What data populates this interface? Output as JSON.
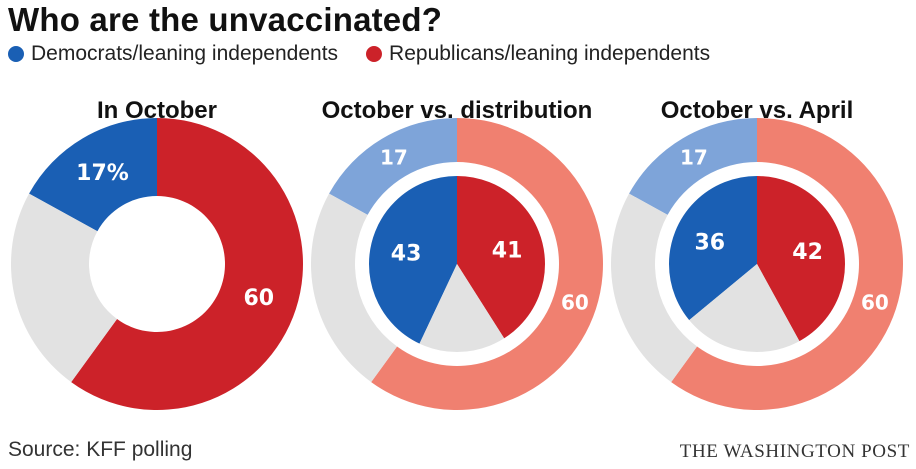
{
  "title": "Who are the unvaccinated?",
  "legend": [
    {
      "label": "Democrats/leaning independents",
      "color": "#1a5fb4"
    },
    {
      "label": "Republicans/leaning independents",
      "color": "#cc2229"
    }
  ],
  "colors": {
    "dem": "#1a5fb4",
    "rep": "#cc2229",
    "other": "#e2e2e2",
    "dem_light": "#7ea4d9",
    "rep_light": "#f08070"
  },
  "chart_data": [
    {
      "type": "pie",
      "title": "In October",
      "rings": [
        {
          "name": "October",
          "slices": [
            {
              "label": "Democrats/leaning independents",
              "value": 17,
              "text": "17%"
            },
            {
              "label": "Republicans/leaning independents",
              "value": 60,
              "text": "60"
            },
            {
              "label": "",
              "value": 23,
              "text": ""
            }
          ]
        }
      ]
    },
    {
      "type": "pie",
      "title": "October vs. distribution",
      "rings": [
        {
          "name": "October",
          "slices": [
            {
              "label": "Democrats/leaning independents",
              "value": 17,
              "text": "17"
            },
            {
              "label": "Republicans/leaning independents",
              "value": 60,
              "text": "60"
            },
            {
              "label": "",
              "value": 23,
              "text": ""
            }
          ]
        },
        {
          "name": "",
          "slices": [
            {
              "label": "Democrats/leaning independents",
              "value": 43,
              "text": "43"
            },
            {
              "label": "Republicans/leaning independents",
              "value": 41,
              "text": "41"
            },
            {
              "label": "",
              "value": 16,
              "text": ""
            }
          ]
        }
      ]
    },
    {
      "type": "pie",
      "title": "October vs. April",
      "rings": [
        {
          "name": "October",
          "slices": [
            {
              "label": "Democrats/leaning independents",
              "value": 17,
              "text": "17"
            },
            {
              "label": "Republicans/leaning independents",
              "value": 60,
              "text": "60"
            },
            {
              "label": "",
              "value": 23,
              "text": ""
            }
          ]
        },
        {
          "name": "April",
          "slices": [
            {
              "label": "Democrats/leaning independents",
              "value": 36,
              "text": "36"
            },
            {
              "label": "Republicans/leaning independents",
              "value": 42,
              "text": "42"
            },
            {
              "label": "",
              "value": 22,
              "text": ""
            }
          ]
        }
      ]
    }
  ],
  "footer": {
    "source": "Source: KFF polling",
    "credit": "THE WASHINGTON POST"
  }
}
